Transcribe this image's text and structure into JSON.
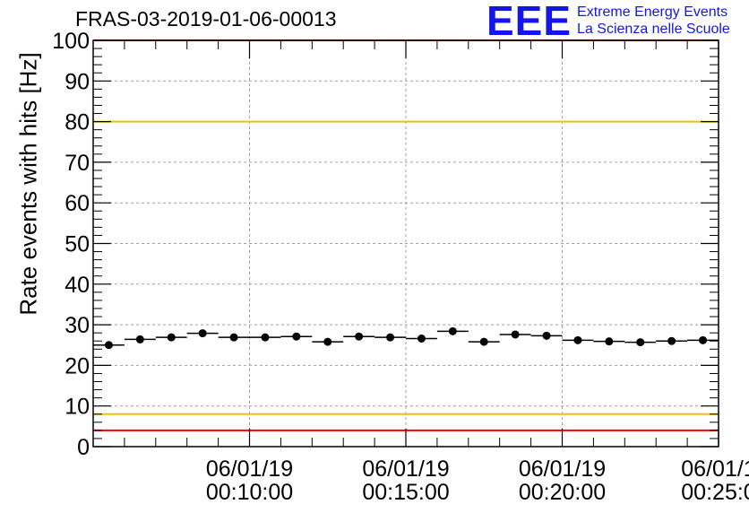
{
  "chart_data": {
    "type": "scatter",
    "title": "FRAS-03-2019-01-06-00013",
    "ylabel": "Rate events with hits [Hz]",
    "xlabel": "",
    "ylim": [
      0,
      100
    ],
    "yticks": [
      0,
      10,
      20,
      30,
      40,
      50,
      60,
      70,
      80,
      90,
      100
    ],
    "xlim": [
      "00:05:00",
      "00:25:00"
    ],
    "xticks": [
      {
        "time": "00:10:00",
        "date_label": "06/01/19",
        "time_label": "00:10:00"
      },
      {
        "time": "00:15:00",
        "date_label": "06/01/19",
        "time_label": "00:15:00"
      },
      {
        "time": "00:20:00",
        "date_label": "06/01/19",
        "time_label": "00:20:00"
      },
      {
        "time": "00:25:00",
        "date_label": "06/01/1",
        "time_label": "00:25:0"
      }
    ],
    "grid": true,
    "series": [
      {
        "marker": "circle",
        "color": "#000000",
        "x": [
          "00:05:30",
          "00:06:30",
          "00:07:30",
          "00:08:30",
          "00:09:30",
          "00:10:30",
          "00:11:30",
          "00:12:30",
          "00:13:30",
          "00:14:30",
          "00:15:30",
          "00:16:30",
          "00:17:30",
          "00:18:30",
          "00:19:30",
          "00:20:30",
          "00:21:30",
          "00:22:30",
          "00:23:30",
          "00:24:30"
        ],
        "y": [
          25.0,
          26.4,
          26.9,
          27.9,
          26.9,
          26.9,
          27.1,
          25.8,
          27.1,
          26.9,
          26.6,
          28.4,
          25.8,
          27.6,
          27.3,
          26.2,
          25.9,
          25.7,
          26.0,
          26.2
        ]
      }
    ],
    "reference_lines": [
      {
        "y": 100,
        "color": "#ff0000"
      },
      {
        "y": 80,
        "color": "#f0c000"
      },
      {
        "y": 8,
        "color": "#f0c000"
      },
      {
        "y": 4,
        "color": "#ff0000"
      }
    ]
  },
  "logo": {
    "mark": "EEE",
    "line1": "Extreme Energy Events",
    "line2": "La Scienza nelle Scuole",
    "color": "#1515e8"
  }
}
